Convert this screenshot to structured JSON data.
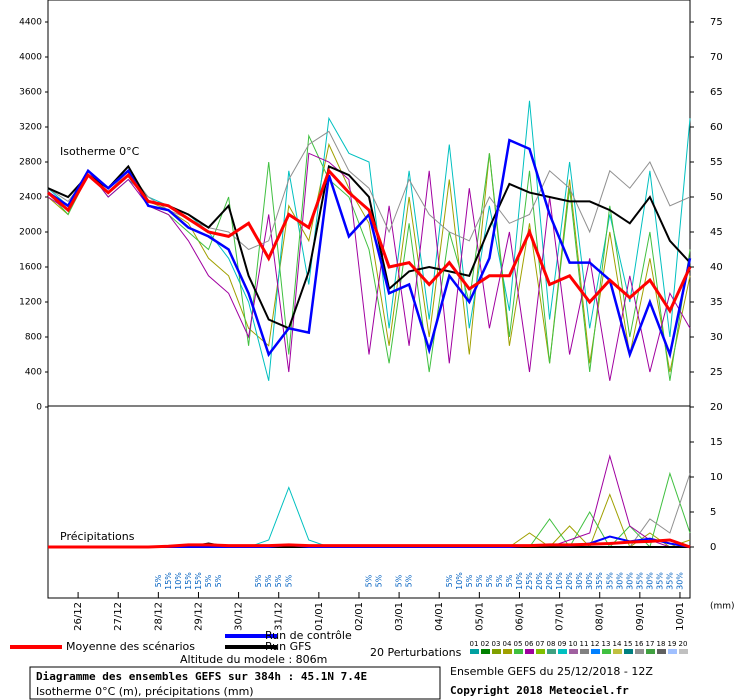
{
  "chart_data": [
    {
      "type": "line",
      "title": "Isotherme 0°C",
      "xlim": [
        0,
        384
      ],
      "x": [
        0,
        12,
        24,
        36,
        48,
        60,
        72,
        84,
        96,
        108,
        120,
        132,
        144,
        156,
        168,
        180,
        192,
        204,
        216,
        228,
        240,
        252,
        264,
        276,
        288,
        300,
        312,
        324,
        336,
        348,
        360,
        372,
        384
      ],
      "ylim": [
        0,
        4400
      ],
      "yticks": [
        0,
        400,
        800,
        1200,
        1600,
        2000,
        2400,
        2800,
        3200,
        3600,
        4000,
        4400
      ],
      "y2lim": [
        20,
        75
      ],
      "y2ticks": [
        25,
        30,
        35,
        40,
        45,
        50,
        55,
        60,
        65,
        70,
        75
      ],
      "series": [
        {
          "name": "04",
          "color": "#a0a000",
          "values": [
            2400,
            2200,
            2700,
            2450,
            2650,
            2350,
            2250,
            2100,
            1700,
            1500,
            900,
            700,
            2300,
            1900,
            3000,
            2500,
            2100,
            700,
            2400,
            800,
            2600,
            600,
            2900,
            700,
            2100,
            500,
            2600,
            500,
            2000,
            600,
            1700,
            400,
            1500
          ]
        },
        {
          "name": "09",
          "color": "#00c0c0",
          "values": [
            2500,
            2300,
            2700,
            2400,
            2600,
            2400,
            2300,
            2200,
            2000,
            1700,
            1200,
            300,
            2700,
            1400,
            3300,
            2900,
            2800,
            900,
            2700,
            1000,
            3000,
            900,
            2300,
            1100,
            3500,
            1000,
            2800,
            900,
            2200,
            1200,
            2700,
            800,
            3300
          ]
        },
        {
          "name": "13",
          "color": "#40c040",
          "values": [
            2450,
            2200,
            2650,
            2500,
            2700,
            2300,
            2200,
            2000,
            1800,
            2400,
            700,
            2800,
            600,
            3100,
            2600,
            2400,
            1800,
            500,
            2100,
            400,
            2000,
            1200,
            2900,
            800,
            2700,
            500,
            2500,
            400,
            2300,
            800,
            2000,
            300,
            1800
          ]
        },
        {
          "name": "06",
          "color": "#a000a0",
          "values": [
            2400,
            2250,
            2700,
            2400,
            2600,
            2300,
            2200,
            1900,
            1500,
            1300,
            800,
            2200,
            400,
            2900,
            2800,
            2600,
            600,
            2300,
            700,
            2700,
            500,
            2500,
            900,
            2000,
            400,
            2400,
            600,
            1700,
            300,
            1500,
            400,
            1300,
            900
          ]
        },
        {
          "name": "16",
          "color": "#909090",
          "values": [
            2500,
            2350,
            2650,
            2450,
            2700,
            2400,
            2250,
            2150,
            2050,
            2000,
            1800,
            1900,
            2600,
            3000,
            3150,
            2700,
            2500,
            2000,
            2600,
            2200,
            2000,
            1900,
            2400,
            2100,
            2200,
            2700,
            2500,
            2000,
            2700,
            2500,
            2800,
            2300,
            2400
          ]
        },
        {
          "name": "Run GFS",
          "color": "#000000",
          "width": 2,
          "values": [
            2500,
            2400,
            2650,
            2500,
            2750,
            2350,
            2300,
            2200,
            2050,
            2300,
            1500,
            1000,
            900,
            1550,
            2750,
            2650,
            2400,
            1350,
            1550,
            1600,
            1550,
            1500,
            2050,
            2550,
            2450,
            2400,
            2350,
            2350,
            2250,
            2100,
            2400,
            1900,
            1650
          ]
        },
        {
          "name": "Run de contrôle",
          "color": "#0000ff",
          "width": 2.5,
          "values": [
            2450,
            2300,
            2700,
            2500,
            2700,
            2300,
            2250,
            2050,
            1950,
            1800,
            1300,
            600,
            900,
            850,
            2650,
            1950,
            2200,
            1300,
            1400,
            650,
            1500,
            1200,
            1700,
            3050,
            2950,
            2200,
            1650,
            1650,
            1450,
            600,
            1200,
            600,
            1700
          ]
        },
        {
          "name": "Moyenne des scénarios",
          "color": "#ff0000",
          "width": 3,
          "values": [
            2450,
            2250,
            2650,
            2450,
            2650,
            2350,
            2300,
            2150,
            2000,
            1950,
            2100,
            1700,
            2200,
            2050,
            2700,
            2450,
            2250,
            1600,
            1650,
            1400,
            1650,
            1350,
            1500,
            1500,
            2000,
            1400,
            1500,
            1200,
            1450,
            1250,
            1450,
            1100,
            1600
          ]
        }
      ]
    },
    {
      "type": "line",
      "title": "Précipitations",
      "xlim": [
        0,
        384
      ],
      "x": [
        0,
        12,
        24,
        36,
        48,
        60,
        72,
        84,
        96,
        108,
        120,
        132,
        144,
        156,
        168,
        180,
        192,
        204,
        216,
        228,
        240,
        252,
        264,
        276,
        288,
        300,
        312,
        324,
        336,
        348,
        360,
        372,
        384
      ],
      "ylim": [
        0,
        20
      ],
      "y2ticks": [
        0,
        5,
        10,
        15,
        20
      ],
      "y_unit": "(mm)",
      "xticks": [
        {
          "value": 18,
          "label": "26/12"
        },
        {
          "value": 42,
          "label": "27/12"
        },
        {
          "value": 66,
          "label": "28/12"
        },
        {
          "value": 90,
          "label": "29/12"
        },
        {
          "value": 114,
          "label": "30/12"
        },
        {
          "value": 138,
          "label": "31/12"
        },
        {
          "value": 162,
          "label": "01/01"
        },
        {
          "value": 186,
          "label": "02/01"
        },
        {
          "value": 210,
          "label": "03/01"
        },
        {
          "value": 234,
          "label": "04/01"
        },
        {
          "value": 258,
          "label": "05/01"
        },
        {
          "value": 282,
          "label": "06/01"
        },
        {
          "value": 306,
          "label": "07/01"
        },
        {
          "value": 330,
          "label": "08/01"
        },
        {
          "value": 354,
          "label": "09/01"
        },
        {
          "value": 378,
          "label": "10/01"
        }
      ],
      "series": [
        {
          "name": "04",
          "color": "#a0a000",
          "values": [
            0,
            0,
            0,
            0,
            0,
            0,
            0,
            0,
            0,
            0,
            0,
            0,
            0,
            0,
            0,
            0,
            0,
            0,
            0,
            0,
            0,
            0,
            0,
            0,
            2,
            0,
            3,
            0,
            7.5,
            0,
            2,
            0,
            1
          ]
        },
        {
          "name": "09",
          "color": "#00c0c0",
          "values": [
            0,
            0,
            0,
            0,
            0,
            0,
            0,
            0,
            0,
            0,
            0,
            1,
            8.5,
            1,
            0,
            0,
            0,
            0,
            0,
            0,
            0,
            0,
            0,
            0,
            0,
            0,
            0,
            0,
            0,
            0,
            0,
            0,
            0
          ]
        },
        {
          "name": "13",
          "color": "#40c040",
          "values": [
            0,
            0,
            0,
            0,
            0,
            0,
            0,
            0,
            0,
            0,
            0,
            0,
            0,
            0,
            0,
            0,
            0,
            0,
            0,
            0,
            0,
            0,
            0,
            0,
            0,
            4,
            0,
            5,
            0,
            3,
            0,
            10.5,
            2
          ]
        },
        {
          "name": "06",
          "color": "#a000a0",
          "values": [
            0,
            0,
            0,
            0,
            0,
            0,
            0,
            0,
            0,
            0,
            0,
            0,
            0,
            0,
            0,
            0,
            0,
            0,
            0,
            0,
            0,
            0,
            0,
            0,
            0,
            0,
            1,
            2,
            13,
            3,
            1,
            0,
            0
          ]
        },
        {
          "name": "16",
          "color": "#909090",
          "values": [
            0,
            0,
            0,
            0,
            0,
            0,
            0,
            0,
            0,
            0,
            0,
            0,
            0,
            0,
            0,
            0,
            0,
            0,
            0,
            0,
            0,
            0,
            0,
            0,
            0,
            0,
            0,
            0,
            0,
            0,
            4,
            2,
            10.5
          ]
        },
        {
          "name": "Run GFS",
          "color": "#000000",
          "width": 2,
          "values": [
            0,
            0,
            0,
            0,
            0,
            0,
            0,
            0,
            0.5,
            0,
            0,
            0,
            0,
            0,
            0,
            0,
            0,
            0,
            0,
            0,
            0,
            0,
            0,
            0,
            0,
            0,
            0,
            0,
            0,
            0,
            0,
            0,
            0
          ]
        },
        {
          "name": "Run de contrôle",
          "color": "#0000ff",
          "width": 2,
          "values": [
            0,
            0,
            0,
            0,
            0,
            0,
            0,
            0,
            0,
            0,
            0,
            0,
            0.3,
            0,
            0,
            0,
            0,
            0,
            0,
            0,
            0,
            0,
            0,
            0,
            0.2,
            0.3,
            0.2,
            0.5,
            1.5,
            0.8,
            1.2,
            0.5,
            0
          ]
        },
        {
          "name": "Moyenne des scénarios",
          "color": "#ff0000",
          "width": 3,
          "values": [
            0,
            0,
            0,
            0,
            0,
            0,
            0.1,
            0.3,
            0.3,
            0.2,
            0.2,
            0.2,
            0.3,
            0.2,
            0.2,
            0.2,
            0.2,
            0.2,
            0.2,
            0.2,
            0.2,
            0.2,
            0.2,
            0.2,
            0.2,
            0.3,
            0.3,
            0.4,
            0.5,
            0.7,
            0.8,
            1.0,
            0
          ]
        }
      ],
      "snow": {
        "x": [
          66,
          72,
          78,
          84,
          90,
          96,
          102,
          126,
          132,
          138,
          144,
          192,
          198,
          210,
          216,
          240,
          246,
          252,
          258,
          264,
          270,
          276,
          282,
          288,
          294,
          300,
          306,
          312,
          318,
          324,
          330,
          336,
          342,
          348,
          354,
          360,
          366,
          372,
          378
        ],
        "values": [
          5,
          15,
          10,
          15,
          15,
          5,
          5,
          5,
          5,
          5,
          5,
          5,
          5,
          5,
          5,
          5,
          10,
          5,
          5,
          5,
          5,
          5,
          10,
          25,
          20,
          20,
          10,
          20,
          30,
          30,
          35,
          35,
          30,
          30,
          35,
          30,
          35,
          35,
          30
        ],
        "value_labels": [
          "5%",
          "15%",
          "10%",
          "15%",
          "15%",
          "5%",
          "5%",
          "5%",
          "5%",
          "5%",
          "5%",
          "5%",
          "5%",
          "5%",
          "5%",
          "5%",
          "10%",
          "5%",
          "5%",
          "5%",
          "5%",
          "5%",
          "10%",
          "25%",
          "20%",
          "20%",
          "10%",
          "20%",
          "30%",
          "30%",
          "35%",
          "35%",
          "30%",
          "30%",
          "35%",
          "30%",
          "35%",
          "35%",
          "30%"
        ]
      }
    }
  ],
  "footer": {
    "legend_main": [
      "Moyenne des scénarios",
      "Run de contrôle",
      "Run GFS"
    ],
    "legend_colors": [
      "#ff0000",
      "#0000ff",
      "#000000"
    ],
    "altitude": "Altitude du modele : 806m",
    "perturbations_title": "20 Perturbations",
    "perturbation_legend": [
      {
        "label": "01",
        "color": "#00a0a0"
      },
      {
        "label": "02",
        "color": "#008000"
      },
      {
        "label": "03",
        "color": "#80a000"
      },
      {
        "label": "04",
        "color": "#a0a000"
      },
      {
        "label": "05",
        "color": "#40c040"
      },
      {
        "label": "06",
        "color": "#a000a0"
      },
      {
        "label": "07",
        "color": "#80c000"
      },
      {
        "label": "08",
        "color": "#40a080"
      },
      {
        "label": "09",
        "color": "#00c0c0"
      },
      {
        "label": "10",
        "color": "#a060a0"
      },
      {
        "label": "11",
        "color": "#808080"
      },
      {
        "label": "12",
        "color": "#0080ff"
      },
      {
        "label": "13",
        "color": "#40c040"
      },
      {
        "label": "14",
        "color": "#c0c040"
      },
      {
        "label": "15",
        "color": "#008080"
      },
      {
        "label": "16",
        "color": "#909090"
      },
      {
        "label": "17",
        "color": "#40a040"
      },
      {
        "label": "18",
        "color": "#606060"
      },
      {
        "label": "19",
        "color": "#a0c0ff"
      },
      {
        "label": "20",
        "color": "#c0c0c0"
      }
    ],
    "box_title": "Diagramme des ensembles GEFS sur 384h : 45.1N 7.4E",
    "box_subtitle": "Isotherme 0°C (m), précipitations (mm)",
    "run_info": "Ensemble GEFS du 25/12/2018 - 12Z",
    "copyright": "Copyright 2018 Meteociel.fr"
  }
}
